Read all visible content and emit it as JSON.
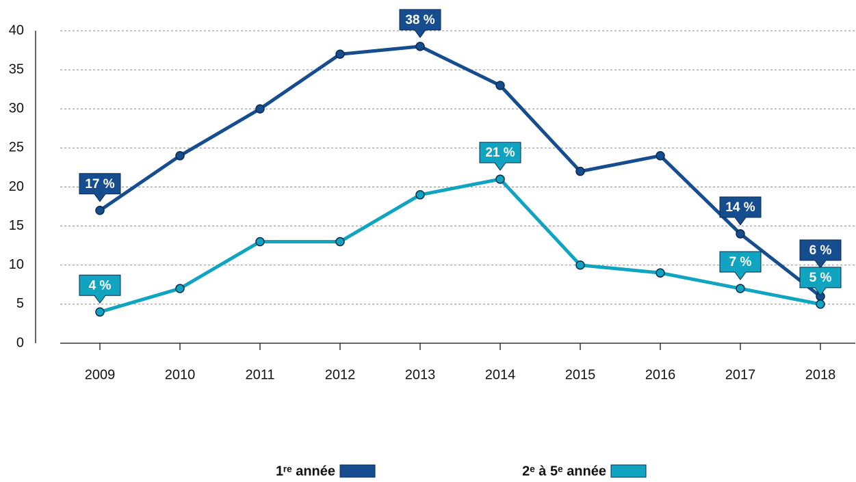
{
  "chart_data": {
    "type": "line",
    "categories": [
      "2009",
      "2010",
      "2011",
      "2012",
      "2013",
      "2014",
      "2015",
      "2016",
      "2017",
      "2018"
    ],
    "series": [
      {
        "name": "1ʳᵉ année",
        "color": "#164d8f",
        "values": [
          17,
          24,
          30,
          37,
          38,
          33,
          22,
          24,
          14,
          6
        ],
        "value_labels": [
          "17 %",
          null,
          null,
          null,
          "38 %",
          null,
          null,
          null,
          "14 %",
          "6 %"
        ]
      },
      {
        "name": "2ᵉ à 5ᵉ année",
        "color": "#10a4c1",
        "values": [
          4,
          7,
          13,
          13,
          19,
          21,
          10,
          9,
          7,
          5
        ],
        "value_labels": [
          "4 %",
          null,
          null,
          null,
          null,
          "21 %",
          null,
          null,
          "7 %",
          "5 %"
        ]
      }
    ],
    "ylim": [
      0,
      40
    ],
    "yticks": [
      0,
      5,
      10,
      15,
      20,
      25,
      30,
      35,
      40
    ],
    "grid": true,
    "legend": "bottom"
  }
}
